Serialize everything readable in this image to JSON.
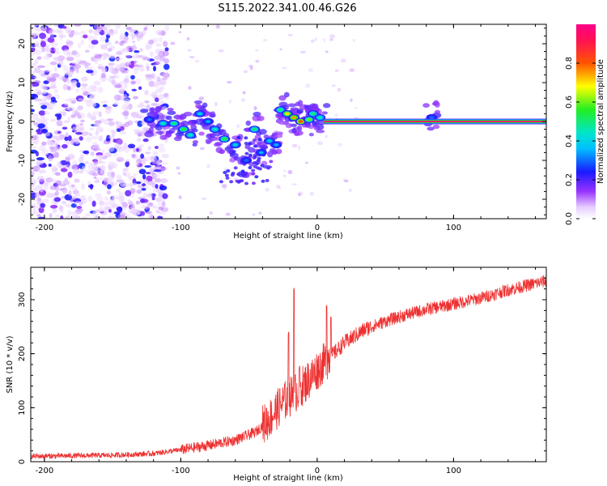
{
  "figure_title": "S115.2022.341.00.46.G26",
  "chart_data": [
    {
      "type": "heatmap",
      "title": "",
      "xlabel": "Height of straight line (km)",
      "ylabel": "Frequency (Hz)",
      "xlim": [
        -210,
        168
      ],
      "ylim": [
        -25,
        25
      ],
      "xticks": [
        -200,
        -100,
        0,
        100
      ],
      "yticks": [
        -20,
        -10,
        0,
        10,
        20
      ],
      "colorbar": {
        "label": "Normalized spectral amplitude",
        "range": [
          0,
          1
        ],
        "ticks": [
          "0.0",
          "0.2",
          "0.4",
          "0.6",
          "0.8"
        ],
        "tick_values": [
          0,
          0.2,
          0.4,
          0.6,
          0.8
        ]
      },
      "features": {
        "noise_region_x": [
          -210,
          -110
        ],
        "noise_freq_range": [
          -25,
          25
        ],
        "carrier_line": {
          "x_start": 5,
          "x_end": 168,
          "frequency": 0,
          "amplitude": 0.95
        },
        "strong_points": [
          {
            "x": -123,
            "y": 0.5,
            "a": 0.3
          },
          {
            "x": -113,
            "y": -0.5,
            "a": 0.45
          },
          {
            "x": -105,
            "y": -0.5,
            "a": 0.5
          },
          {
            "x": -98,
            "y": -2,
            "a": 0.55
          },
          {
            "x": -93,
            "y": -3.5,
            "a": 0.45
          },
          {
            "x": -86,
            "y": 2,
            "a": 0.4
          },
          {
            "x": -80,
            "y": 0,
            "a": 0.35
          },
          {
            "x": -75,
            "y": -2,
            "a": 0.45
          },
          {
            "x": -68,
            "y": -4.5,
            "a": 0.55
          },
          {
            "x": -60,
            "y": -6,
            "a": 0.4
          },
          {
            "x": -52,
            "y": -10,
            "a": 0.3
          },
          {
            "x": -46,
            "y": -2,
            "a": 0.5
          },
          {
            "x": -41,
            "y": -8,
            "a": 0.35
          },
          {
            "x": -35,
            "y": -5,
            "a": 0.4
          },
          {
            "x": -30,
            "y": -6,
            "a": 0.35
          },
          {
            "x": -27,
            "y": 3,
            "a": 0.5
          },
          {
            "x": -22,
            "y": 2,
            "a": 0.7
          },
          {
            "x": -17,
            "y": 1,
            "a": 0.75
          },
          {
            "x": -12,
            "y": 0,
            "a": 0.8
          },
          {
            "x": -6,
            "y": 0.5,
            "a": 0.6
          },
          {
            "x": -3,
            "y": 2,
            "a": 0.5
          },
          {
            "x": 2,
            "y": 1,
            "a": 0.45
          },
          {
            "x": 84,
            "y": 1,
            "a": 0.3
          }
        ]
      }
    },
    {
      "type": "line",
      "title": "",
      "xlabel": "Height of straight line (km)",
      "ylabel": "SNR (10 * v/v)",
      "xlim": [
        -210,
        168
      ],
      "ylim": [
        0,
        360
      ],
      "xticks": [
        -200,
        -100,
        0,
        100
      ],
      "yticks": [
        0,
        100,
        200,
        300
      ],
      "color": "#ee3030",
      "series_trend": [
        {
          "x": -210,
          "y": 10
        },
        {
          "x": -150,
          "y": 12
        },
        {
          "x": -120,
          "y": 15
        },
        {
          "x": -100,
          "y": 22
        },
        {
          "x": -80,
          "y": 30
        },
        {
          "x": -60,
          "y": 40
        },
        {
          "x": -45,
          "y": 55
        },
        {
          "x": -35,
          "y": 80
        },
        {
          "x": -25,
          "y": 110
        },
        {
          "x": -15,
          "y": 130
        },
        {
          "x": -5,
          "y": 155
        },
        {
          "x": 0,
          "y": 170
        },
        {
          "x": 10,
          "y": 195
        },
        {
          "x": 20,
          "y": 220
        },
        {
          "x": 35,
          "y": 245
        },
        {
          "x": 50,
          "y": 260
        },
        {
          "x": 65,
          "y": 272
        },
        {
          "x": 80,
          "y": 282
        },
        {
          "x": 100,
          "y": 292
        },
        {
          "x": 120,
          "y": 303
        },
        {
          "x": 140,
          "y": 318
        },
        {
          "x": 168,
          "y": 335
        }
      ],
      "spikes": [
        {
          "x": -21,
          "y": 240
        },
        {
          "x": -17,
          "y": 325
        },
        {
          "x": -13,
          "y": 180
        },
        {
          "x": 7,
          "y": 290
        },
        {
          "x": 10,
          "y": 270
        }
      ]
    }
  ]
}
